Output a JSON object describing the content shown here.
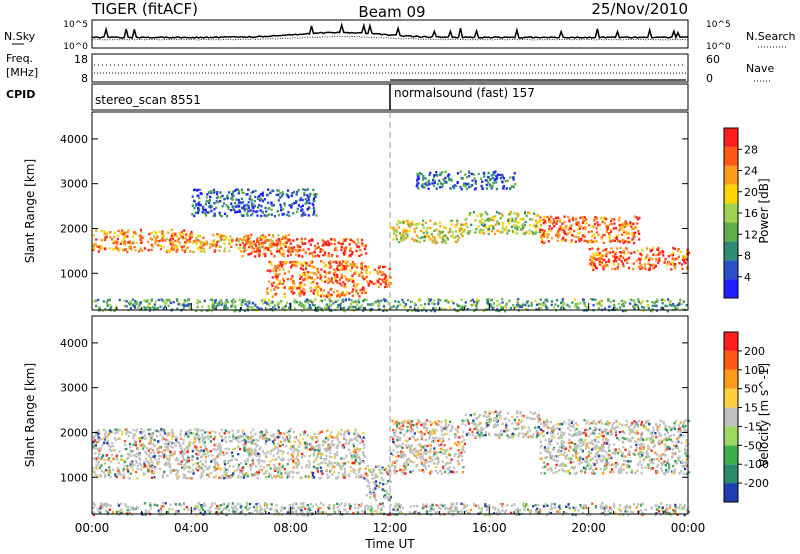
{
  "header": {
    "title": "TIGER (fitACF)",
    "beam": "Beam 09",
    "date": "25/Nov/2010"
  },
  "top_panels": {
    "nsky_label": "N.Sky",
    "nsearch_label": "N.Search",
    "nsky_ticks": [
      "10^5",
      "10^0"
    ],
    "nsky_ticks_right": [
      "10^5",
      "10^0"
    ],
    "freq_label_1": "Freq.",
    "freq_label_2": "[MHz]",
    "freq_ticks": [
      "18",
      "8"
    ],
    "nave_label": "Nave",
    "nave_ticks": [
      "60",
      "0"
    ],
    "cpid_label": "CPID",
    "cpid_segments": [
      {
        "label": "stereo_scan 8551",
        "start_hour": 0
      },
      {
        "label": "normalsound (fast) 157",
        "start_hour": 12
      }
    ]
  },
  "chart_data": [
    {
      "type": "heatmap",
      "title": "",
      "xlabel": "Time UT",
      "ylabel": "Slant Range [km]",
      "xlim": [
        0,
        24
      ],
      "ylim": [
        180,
        4600
      ],
      "x_ticks": [
        "00:00",
        "04:00",
        "08:00",
        "12:00",
        "16:00",
        "20:00",
        "00:00"
      ],
      "y_ticks": [
        1000,
        2000,
        3000,
        4000
      ],
      "colorbar": {
        "label": "Power [dB]",
        "ticks": [
          4,
          8,
          12,
          16,
          20,
          24,
          28
        ],
        "colors": [
          "#1f1fff",
          "#2b4fc8",
          "#2e8c76",
          "#5fae4c",
          "#9ed250",
          "#ffd400",
          "#ff9a1a",
          "#ff5a14",
          "#ff1e1e"
        ],
        "range": [
          0,
          32
        ]
      },
      "bands": [
        {
          "t0": 0,
          "t1": 4,
          "r0": 1500,
          "r1": 2000,
          "level": 0.75
        },
        {
          "t0": 4,
          "t1": 8,
          "r0": 1500,
          "r1": 1900,
          "level": 0.7
        },
        {
          "t0": 6,
          "t1": 11,
          "r0": 1400,
          "r1": 1800,
          "level": 0.9
        },
        {
          "t0": 7,
          "t1": 11,
          "r0": 500,
          "r1": 1300,
          "level": 0.8
        },
        {
          "t0": 11,
          "t1": 12,
          "r0": 700,
          "r1": 1200,
          "level": 0.85
        },
        {
          "t0": 12,
          "t1": 15,
          "r0": 1700,
          "r1": 2200,
          "level": 0.55
        },
        {
          "t0": 15,
          "t1": 18,
          "r0": 1900,
          "r1": 2400,
          "level": 0.5
        },
        {
          "t0": 18,
          "t1": 22,
          "r0": 1700,
          "r1": 2300,
          "level": 0.8
        },
        {
          "t0": 20,
          "t1": 24,
          "r0": 1100,
          "r1": 1600,
          "level": 0.85
        },
        {
          "t0": 0,
          "t1": 24,
          "r0": 180,
          "r1": 450,
          "level": 0.35
        },
        {
          "t0": 4,
          "t1": 9,
          "r0": 2300,
          "r1": 2900,
          "level": 0.2
        },
        {
          "t0": 13,
          "t1": 17,
          "r0": 2900,
          "r1": 3300,
          "level": 0.2
        }
      ]
    },
    {
      "type": "heatmap",
      "title": "",
      "xlabel": "Time UT",
      "ylabel": "Slant Range [km]",
      "xlim": [
        0,
        24
      ],
      "ylim": [
        180,
        4600
      ],
      "x_ticks": [
        "00:00",
        "04:00",
        "08:00",
        "12:00",
        "16:00",
        "20:00",
        "00:00"
      ],
      "y_ticks": [
        1000,
        2000,
        3000,
        4000
      ],
      "colorbar": {
        "label": "Velocity [m s^-1]",
        "ticks": [
          "200",
          "100",
          "50",
          "15",
          "-15",
          "-50",
          "-100",
          "-200"
        ],
        "colors": [
          "#1f3fb0",
          "#2b8a6a",
          "#3fae4a",
          "#9ed860",
          "#c0c0c0",
          "#ffcf40",
          "#ff9a1a",
          "#ff5a14",
          "#ff1e1e"
        ]
      },
      "bands": [
        {
          "t0": 0,
          "t1": 11,
          "r0": 1000,
          "r1": 2100,
          "level": 0.5
        },
        {
          "t0": 11,
          "t1": 12,
          "r0": 500,
          "r1": 1300,
          "level": 0.3
        },
        {
          "t0": 12,
          "t1": 15,
          "r0": 1100,
          "r1": 2300,
          "level": 0.7
        },
        {
          "t0": 15,
          "t1": 18,
          "r0": 1900,
          "r1": 2500,
          "level": 0.5
        },
        {
          "t0": 18,
          "t1": 24,
          "r0": 1100,
          "r1": 2300,
          "level": 0.5
        },
        {
          "t0": 0,
          "t1": 24,
          "r0": 180,
          "r1": 450,
          "level": 0.3
        }
      ]
    }
  ]
}
